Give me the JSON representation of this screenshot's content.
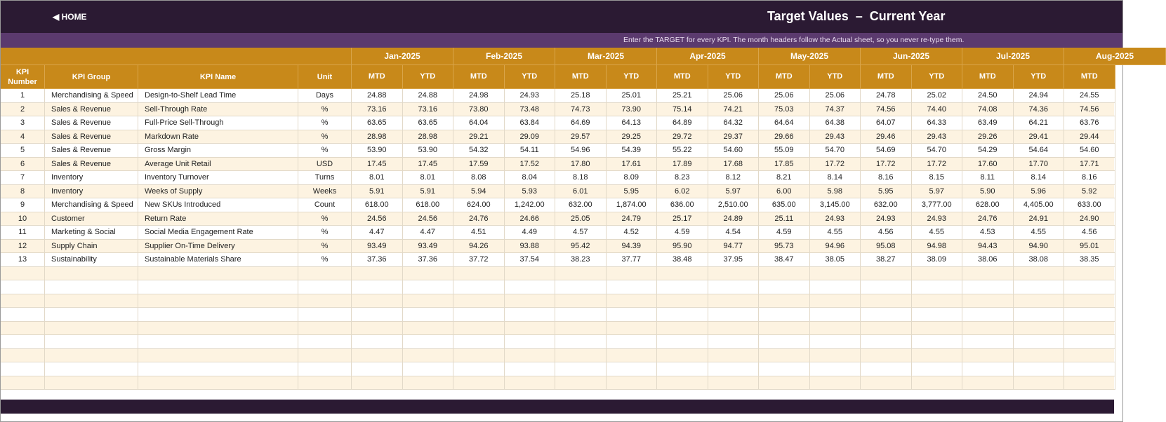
{
  "header": {
    "home": "HOME",
    "title": "Target Values  –  Current Year",
    "note": "Enter the TARGET for every KPI. The month headers follow the Actual sheet, so you never re-type them."
  },
  "table": {
    "columns": [
      "KPI Number",
      "KPI Group",
      "KPI Name",
      "Unit"
    ],
    "months": [
      "Jan-2025",
      "Feb-2025",
      "Mar-2025",
      "Apr-2025",
      "May-2025",
      "Jun-2025",
      "Jul-2025",
      "Aug-2025"
    ],
    "subheaders": [
      "MTD",
      "YTD",
      "MTD",
      "YTD",
      "MTD",
      "YTD",
      "MTD",
      "YTD",
      "MTD",
      "YTD",
      "MTD",
      "YTD",
      "MTD",
      "YTD",
      "MTD"
    ],
    "rows": [
      [
        "1",
        "Merchandising & Speed",
        "Design-to-Shelf Lead Time",
        "Days",
        "24.88",
        "24.88",
        "24.98",
        "24.93",
        "25.18",
        "25.01",
        "25.21",
        "25.06",
        "25.06",
        "25.06",
        "24.78",
        "25.02",
        "24.50",
        "24.94",
        "24.55"
      ],
      [
        "2",
        "Sales & Revenue",
        "Sell-Through Rate",
        "%",
        "73.16",
        "73.16",
        "73.80",
        "73.48",
        "74.73",
        "73.90",
        "75.14",
        "74.21",
        "75.03",
        "74.37",
        "74.56",
        "74.40",
        "74.08",
        "74.36",
        "74.56"
      ],
      [
        "3",
        "Sales & Revenue",
        "Full-Price Sell-Through",
        "%",
        "63.65",
        "63.65",
        "64.04",
        "63.84",
        "64.69",
        "64.13",
        "64.89",
        "64.32",
        "64.64",
        "64.38",
        "64.07",
        "64.33",
        "63.49",
        "64.21",
        "63.76"
      ],
      [
        "4",
        "Sales & Revenue",
        "Markdown Rate",
        "%",
        "28.98",
        "28.98",
        "29.21",
        "29.09",
        "29.57",
        "29.25",
        "29.72",
        "29.37",
        "29.66",
        "29.43",
        "29.46",
        "29.43",
        "29.26",
        "29.41",
        "29.44"
      ],
      [
        "5",
        "Sales & Revenue",
        "Gross Margin",
        "%",
        "53.90",
        "53.90",
        "54.32",
        "54.11",
        "54.96",
        "54.39",
        "55.22",
        "54.60",
        "55.09",
        "54.70",
        "54.69",
        "54.70",
        "54.29",
        "54.64",
        "54.60"
      ],
      [
        "6",
        "Sales & Revenue",
        "Average Unit Retail",
        "USD",
        "17.45",
        "17.45",
        "17.59",
        "17.52",
        "17.80",
        "17.61",
        "17.89",
        "17.68",
        "17.85",
        "17.72",
        "17.72",
        "17.72",
        "17.60",
        "17.70",
        "17.71"
      ],
      [
        "7",
        "Inventory",
        "Inventory Turnover",
        "Turns",
        "8.01",
        "8.01",
        "8.08",
        "8.04",
        "8.18",
        "8.09",
        "8.23",
        "8.12",
        "8.21",
        "8.14",
        "8.16",
        "8.15",
        "8.11",
        "8.14",
        "8.16"
      ],
      [
        "8",
        "Inventory",
        "Weeks of Supply",
        "Weeks",
        "5.91",
        "5.91",
        "5.94",
        "5.93",
        "6.01",
        "5.95",
        "6.02",
        "5.97",
        "6.00",
        "5.98",
        "5.95",
        "5.97",
        "5.90",
        "5.96",
        "5.92"
      ],
      [
        "9",
        "Merchandising & Speed",
        "New SKUs Introduced",
        "Count",
        "618.00",
        "618.00",
        "624.00",
        "1,242.00",
        "632.00",
        "1,874.00",
        "636.00",
        "2,510.00",
        "635.00",
        "3,145.00",
        "632.00",
        "3,777.00",
        "628.00",
        "4,405.00",
        "633.00"
      ],
      [
        "10",
        "Customer",
        "Return Rate",
        "%",
        "24.56",
        "24.56",
        "24.76",
        "24.66",
        "25.05",
        "24.79",
        "25.17",
        "24.89",
        "25.11",
        "24.93",
        "24.93",
        "24.93",
        "24.76",
        "24.91",
        "24.90"
      ],
      [
        "11",
        "Marketing & Social",
        "Social Media Engagement Rate",
        "%",
        "4.47",
        "4.47",
        "4.51",
        "4.49",
        "4.57",
        "4.52",
        "4.59",
        "4.54",
        "4.59",
        "4.55",
        "4.56",
        "4.55",
        "4.53",
        "4.55",
        "4.56"
      ],
      [
        "12",
        "Supply Chain",
        "Supplier On-Time Delivery",
        "%",
        "93.49",
        "93.49",
        "94.26",
        "93.88",
        "95.42",
        "94.39",
        "95.90",
        "94.77",
        "95.73",
        "94.96",
        "95.08",
        "94.98",
        "94.43",
        "94.90",
        "95.01"
      ],
      [
        "13",
        "Sustainability",
        "Sustainable Materials Share",
        "%",
        "37.36",
        "37.36",
        "37.72",
        "37.54",
        "38.23",
        "37.77",
        "38.48",
        "37.95",
        "38.47",
        "38.05",
        "38.27",
        "38.09",
        "38.06",
        "38.08",
        "38.35"
      ]
    ]
  }
}
